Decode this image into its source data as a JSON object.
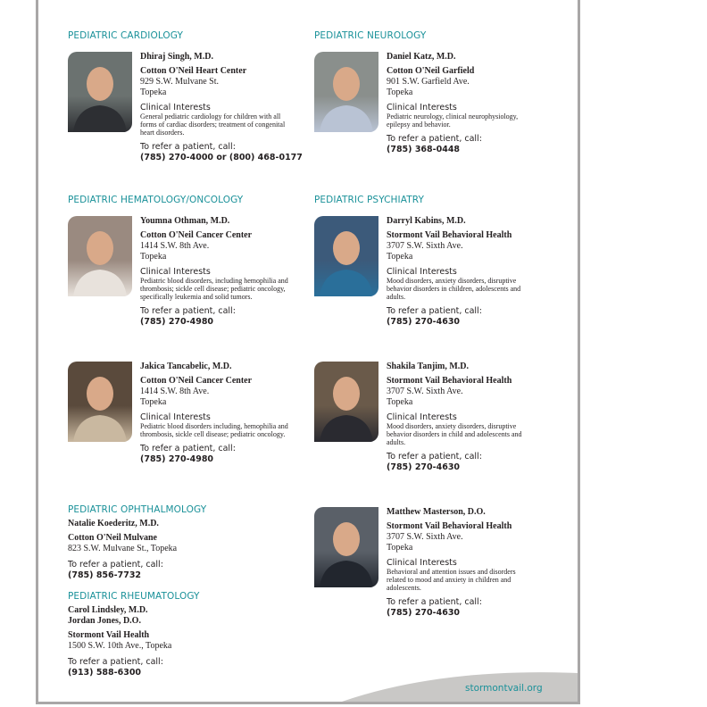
{
  "sections": {
    "cardiology": {
      "heading": "PEDIATRIC CARDIOLOGY"
    },
    "neurology": {
      "heading": "PEDIATRIC NEUROLOGY"
    },
    "hemonc": {
      "heading": "PEDIATRIC HEMATOLOGY/ONCOLOGY"
    },
    "psychiatry": {
      "heading": "PEDIATRIC PSYCHIATRY"
    },
    "ophthalmology": {
      "heading": "PEDIATRIC OPHTHALMOLOGY"
    },
    "rheumatology": {
      "heading": "PEDIATRIC RHEUMATOLOGY"
    }
  },
  "labels": {
    "clinical_interests": "Clinical Interests",
    "refer": "To refer a patient, call:"
  },
  "doctors": [
    {
      "name": "Dhiraj Singh, M.D.",
      "org": "Cotton O'Neil Heart Center",
      "address": "929 S.W. Mulvane St.",
      "city": "Topeka",
      "interests": "General pediatric cardiology for children with all forms of cardiac disorders; treatment of congenital heart disorders.",
      "phone": "(785) 270-4000 or (800) 468-0177"
    },
    {
      "name": "Daniel Katz, M.D.",
      "org": "Cotton O'Neil Garfield",
      "address": "901 S.W. Garfield Ave.",
      "city": "Topeka",
      "interests": "Pediatric neurology, clinical neurophysiology, epilepsy and behavior.",
      "phone": "(785) 368-0448"
    },
    {
      "name": "Youmna Othman, M.D.",
      "org": "Cotton O'Neil Cancer Center",
      "address": "1414 S.W. 8th Ave.",
      "city": "Topeka",
      "interests": "Pediatric blood disorders, including hemophilia and thrombosis; sickle cell disease; pediatric oncology, specifically leukemia and solid tumors.",
      "phone": "(785) 270-4980"
    },
    {
      "name": "Darryl Kabins, M.D.",
      "org": "Stormont Vail Behavioral Health",
      "address": "3707 S.W. Sixth Ave.",
      "city": "Topeka",
      "interests": "Mood disorders, anxiety disorders, disruptive behavior disorders in children, adolescents and adults.",
      "phone": "(785) 270-4630"
    },
    {
      "name": "Jakica Tancabelic, M.D.",
      "org": "Cotton O'Neil Cancer Center",
      "address": "1414 S.W. 8th Ave.",
      "city": "Topeka",
      "interests": "Pediatric blood disorders including, hemophilia and thrombosis, sickle cell disease; pediatric oncology.",
      "phone": "(785) 270-4980"
    },
    {
      "name": "Shakila Tanjim, M.D.",
      "org": "Stormont Vail Behavioral Health",
      "address": "3707 S.W. Sixth Ave.",
      "city": "Topeka",
      "interests": "Mood disorders, anxiety disorders, disruptive behavior disorders in child and adolescents and adults.",
      "phone": "(785) 270-4630"
    },
    {
      "name": "Matthew Masterson, D.O.",
      "org": "Stormont Vail Behavioral Health",
      "address": "3707 S.W. Sixth Ave.",
      "city": "Topeka",
      "interests": "Behavioral and attention issues and disorders related to mood and anxiety in children and adolescents.",
      "phone": "(785) 270-4630"
    }
  ],
  "ophthalmology": {
    "name": "Natalie Koederitz, M.D.",
    "org": "Cotton O'Neil Mulvane",
    "address": "823 S.W. Mulvane St., Topeka",
    "phone": "(785) 856-7732"
  },
  "rheumatology": {
    "name1": "Carol Lindsley, M.D.",
    "name2": "Jordan Jones, D.O.",
    "org": "Stormont Vail Health",
    "address": "1500 S.W. 10th Ave., Topeka",
    "phone": "(913) 588-6300"
  },
  "footer": {
    "url": "stormontvail.org"
  },
  "colors": {
    "accent": "#1a9199",
    "border": "#a9a7a7",
    "footer_wave": "#c9c8c6"
  }
}
